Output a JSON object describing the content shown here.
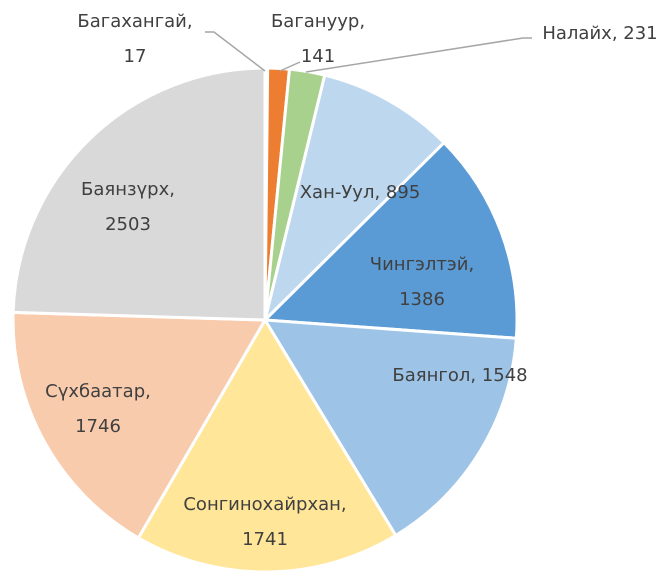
{
  "chart_data": {
    "type": "pie",
    "categories": [
      "Багахангай",
      "Багануур",
      "Налайх",
      "Хан-Уул",
      "Чингэлтэй",
      "Баянгол",
      "Сонгинохайрхан",
      "Сүхбаатар",
      "Баянзүрх"
    ],
    "values": [
      17,
      141,
      231,
      895,
      1386,
      1548,
      1741,
      1746,
      2503
    ],
    "colors": [
      "#7f7f7f",
      "#ed7d31",
      "#a9d18e",
      "#bdd7ee",
      "#5b9bd5",
      "#9dc3e6",
      "#ffe699",
      "#f8cbad",
      "#d9d9d9"
    ]
  }
}
